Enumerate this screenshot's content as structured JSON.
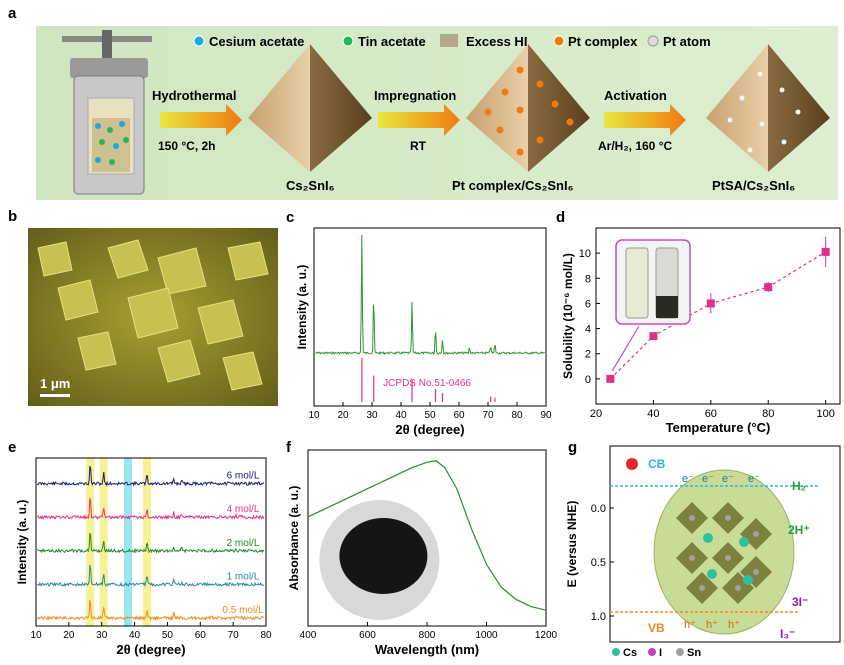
{
  "panel_labels": [
    "a",
    "b",
    "c",
    "d",
    "e",
    "f",
    "g"
  ],
  "panel_a": {
    "legend": [
      {
        "label": "Cesium acetate",
        "color": "#1ea8e0"
      },
      {
        "label": "Tin acetate",
        "color": "#22b85a"
      },
      {
        "label": "Excess HI",
        "color": "#b4a78a"
      },
      {
        "label": "Pt complex",
        "color": "#f07a10"
      },
      {
        "label": "Pt atom",
        "color": "#dcdcdc"
      }
    ],
    "steps": [
      {
        "top": "Hydrothermal",
        "bottom": "150 °C, 2h"
      },
      {
        "top": "Impregnation",
        "bottom": "RT"
      },
      {
        "top": "Activation",
        "bottom": "Ar/H₂, 160 °C"
      }
    ],
    "products": [
      "Cs₂SnI₆",
      "Pt complex/Cs₂SnI₆",
      "PtSA/Cs₂SnI₆"
    ]
  },
  "panel_b": {
    "scalebar": "1 μm"
  },
  "chart_data": [
    {
      "panel": "c",
      "type": "line",
      "xlabel": "2θ (degree)",
      "ylabel": "Intensity (a. u.)",
      "xlim": [
        10,
        90
      ],
      "xticks": [
        10,
        20,
        30,
        40,
        50,
        60,
        70,
        80,
        90
      ],
      "series": [
        {
          "name": "",
          "values": []
        }
      ],
      "peaks": [
        {
          "x": 26.5,
          "h": 1.0
        },
        {
          "x": 30.6,
          "h": 0.5
        },
        {
          "x": 43.8,
          "h": 0.45
        },
        {
          "x": 51.9,
          "h": 0.22
        },
        {
          "x": 54.3,
          "h": 0.12
        },
        {
          "x": 63.6,
          "h": 0.05
        },
        {
          "x": 70.9,
          "h": 0.06
        },
        {
          "x": 72.4,
          "h": 0.08
        }
      ],
      "reference": {
        "label": "JCPDS No.51-0466",
        "lines": [
          {
            "x": 26.5,
            "h": 1.0
          },
          {
            "x": 30.6,
            "h": 0.6
          },
          {
            "x": 43.8,
            "h": 0.5
          },
          {
            "x": 51.9,
            "h": 0.3
          },
          {
            "x": 54.3,
            "h": 0.2
          },
          {
            "x": 70.9,
            "h": 0.12
          },
          {
            "x": 72.4,
            "h": 0.1
          }
        ]
      }
    },
    {
      "panel": "d",
      "type": "scatter",
      "xlabel": "Temperature (°C)",
      "ylabel": "Solubility (10⁻⁶ mol/L)",
      "xlim": [
        20,
        105
      ],
      "ylim": [
        -2,
        12
      ],
      "xticks": [
        20,
        40,
        60,
        80,
        100
      ],
      "yticks": [
        0,
        2,
        4,
        6,
        8,
        10
      ],
      "x": [
        25,
        40,
        60,
        80,
        100
      ],
      "y": [
        0,
        3.4,
        6.0,
        7.3,
        10.1
      ],
      "err": [
        0.3,
        0.3,
        0.8,
        0.4,
        1.2
      ]
    },
    {
      "panel": "e",
      "type": "line",
      "xlabel": "2θ (degree)",
      "ylabel": "Intensity (a. u.)",
      "xlim": [
        10,
        80
      ],
      "xticks": [
        10,
        20,
        30,
        40,
        50,
        60,
        70,
        80
      ],
      "series": [
        {
          "name": "6 mol/L",
          "color": "#1a1a6e"
        },
        {
          "name": "4 mol/L",
          "color": "#e0308a"
        },
        {
          "name": "2 mol/L",
          "color": "#1f8a2a"
        },
        {
          "name": "1 mol/L",
          "color": "#2a8a9a"
        },
        {
          "name": "0.5 mol/L",
          "color": "#f08a20"
        }
      ],
      "highlights": [
        {
          "x": 26.5,
          "color": "#f3ee7a"
        },
        {
          "x": 30.6,
          "color": "#f3ee7a"
        },
        {
          "x": 38.0,
          "color": "#7fe0f0"
        },
        {
          "x": 43.8,
          "color": "#f3ee7a"
        }
      ]
    },
    {
      "panel": "f",
      "type": "line",
      "xlabel": "Wavelength (nm)",
      "ylabel": "Absorbance (a. u.)",
      "xlim": [
        400,
        1200
      ],
      "xticks": [
        400,
        600,
        800,
        1000,
        1200
      ],
      "series": [
        {
          "name": "",
          "x": [
            400,
            450,
            500,
            550,
            600,
            650,
            700,
            750,
            800,
            830,
            860,
            900,
            950,
            1000,
            1050,
            1100,
            1150,
            1200
          ],
          "y": [
            0.62,
            0.66,
            0.7,
            0.74,
            0.78,
            0.82,
            0.86,
            0.9,
            0.93,
            0.94,
            0.9,
            0.78,
            0.55,
            0.35,
            0.22,
            0.15,
            0.11,
            0.09
          ]
        }
      ]
    },
    {
      "panel": "g",
      "type": "diagram",
      "ylabel": "E (versus NHE)",
      "yticks": [
        "0.0",
        "0.5",
        "1.0"
      ],
      "labels": {
        "cb": "CB",
        "vb": "VB",
        "e": "e⁻",
        "h": "h⁺",
        "h2": "H₂",
        "hplus": "2H⁺",
        "i3": "I₃⁻",
        "i": "3I⁻"
      },
      "legend": [
        {
          "label": "Cs",
          "color": "#30c0a0"
        },
        {
          "label": "I",
          "color": "#c040c0"
        },
        {
          "label": "Sn",
          "color": "#a0a0a0"
        }
      ]
    }
  ]
}
